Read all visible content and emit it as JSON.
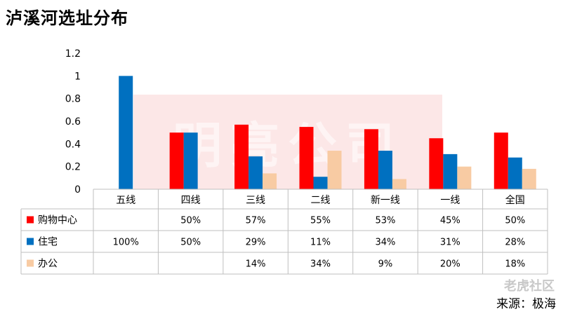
{
  "title": "泸溪河选址分布",
  "source": "来源：极海",
  "watermark_text": "明亮公司",
  "logo_text": "老虎社区",
  "chart_data": {
    "type": "bar",
    "title": "泸溪河选址分布",
    "categories": [
      "五线",
      "四线",
      "三线",
      "二线",
      "新一线",
      "一线",
      "全国"
    ],
    "ylim": [
      0,
      1.2
    ],
    "yticks": [
      0,
      0.2,
      0.4,
      0.6,
      0.8,
      1,
      1.2
    ],
    "ytick_labels": [
      "0",
      "0.2",
      "0.4",
      "0.6",
      "0.8",
      "1",
      "1.2"
    ],
    "grid": false,
    "legend": "table-left",
    "series": [
      {
        "name": "购物中心",
        "color": "#ff0000",
        "values": [
          null,
          0.5,
          0.57,
          0.55,
          0.53,
          0.45,
          0.5
        ],
        "labels": [
          "",
          "50%",
          "57%",
          "55%",
          "53%",
          "45%",
          "50%"
        ]
      },
      {
        "name": "住宅",
        "color": "#0070c0",
        "values": [
          1.0,
          0.5,
          0.29,
          0.11,
          0.34,
          0.31,
          0.28
        ],
        "labels": [
          "100%",
          "50%",
          "29%",
          "11%",
          "34%",
          "31%",
          "28%"
        ]
      },
      {
        "name": "办公",
        "color": "#f8cba3",
        "values": [
          null,
          null,
          0.14,
          0.34,
          0.09,
          0.2,
          0.18
        ],
        "labels": [
          "",
          "",
          "14%",
          "34%",
          "9%",
          "20%",
          "18%"
        ]
      }
    ]
  }
}
